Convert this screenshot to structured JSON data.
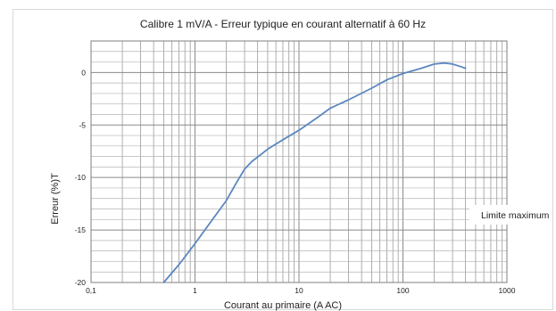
{
  "chart_data": {
    "type": "line",
    "title": "Calibre 1 mV/A - Erreur typique en courant alternatif à 60 Hz",
    "xlabel": "Courant au primaire (A AC)",
    "ylabel": "Erreur (%)T",
    "x_scale": "log",
    "xlim": [
      0.1,
      1000
    ],
    "ylim": [
      -20,
      3
    ],
    "grid": true,
    "x_ticks": [
      {
        "value": 0.1,
        "label": "0,1"
      },
      {
        "value": 1,
        "label": "1"
      },
      {
        "value": 10,
        "label": "10"
      },
      {
        "value": 100,
        "label": "100"
      },
      {
        "value": 1000,
        "label": "1000"
      }
    ],
    "y_ticks": [
      {
        "value": 0,
        "label": "0"
      },
      {
        "value": -5,
        "label": "-5"
      },
      {
        "value": -10,
        "label": "-10"
      },
      {
        "value": -15,
        "label": "-15"
      },
      {
        "value": -20,
        "label": "-20"
      }
    ],
    "series": [
      {
        "color": "#5b87c0",
        "x": [
          0.5,
          0.7,
          1,
          1.5,
          2,
          2.5,
          3,
          3.5,
          5,
          7,
          10,
          15,
          20,
          30,
          50,
          70,
          100,
          150,
          200,
          250,
          300,
          350,
          400
        ],
        "y": [
          -20,
          -18.3,
          -16.3,
          -13.9,
          -12.2,
          -10.5,
          -9.2,
          -8.5,
          -7.3,
          -6.4,
          -5.5,
          -4.3,
          -3.4,
          -2.6,
          -1.5,
          -0.7,
          -0.1,
          0.4,
          0.8,
          0.9,
          0.8,
          0.6,
          0.4
        ]
      }
    ],
    "annotations": [
      {
        "text": "Limite maximum"
      }
    ]
  }
}
